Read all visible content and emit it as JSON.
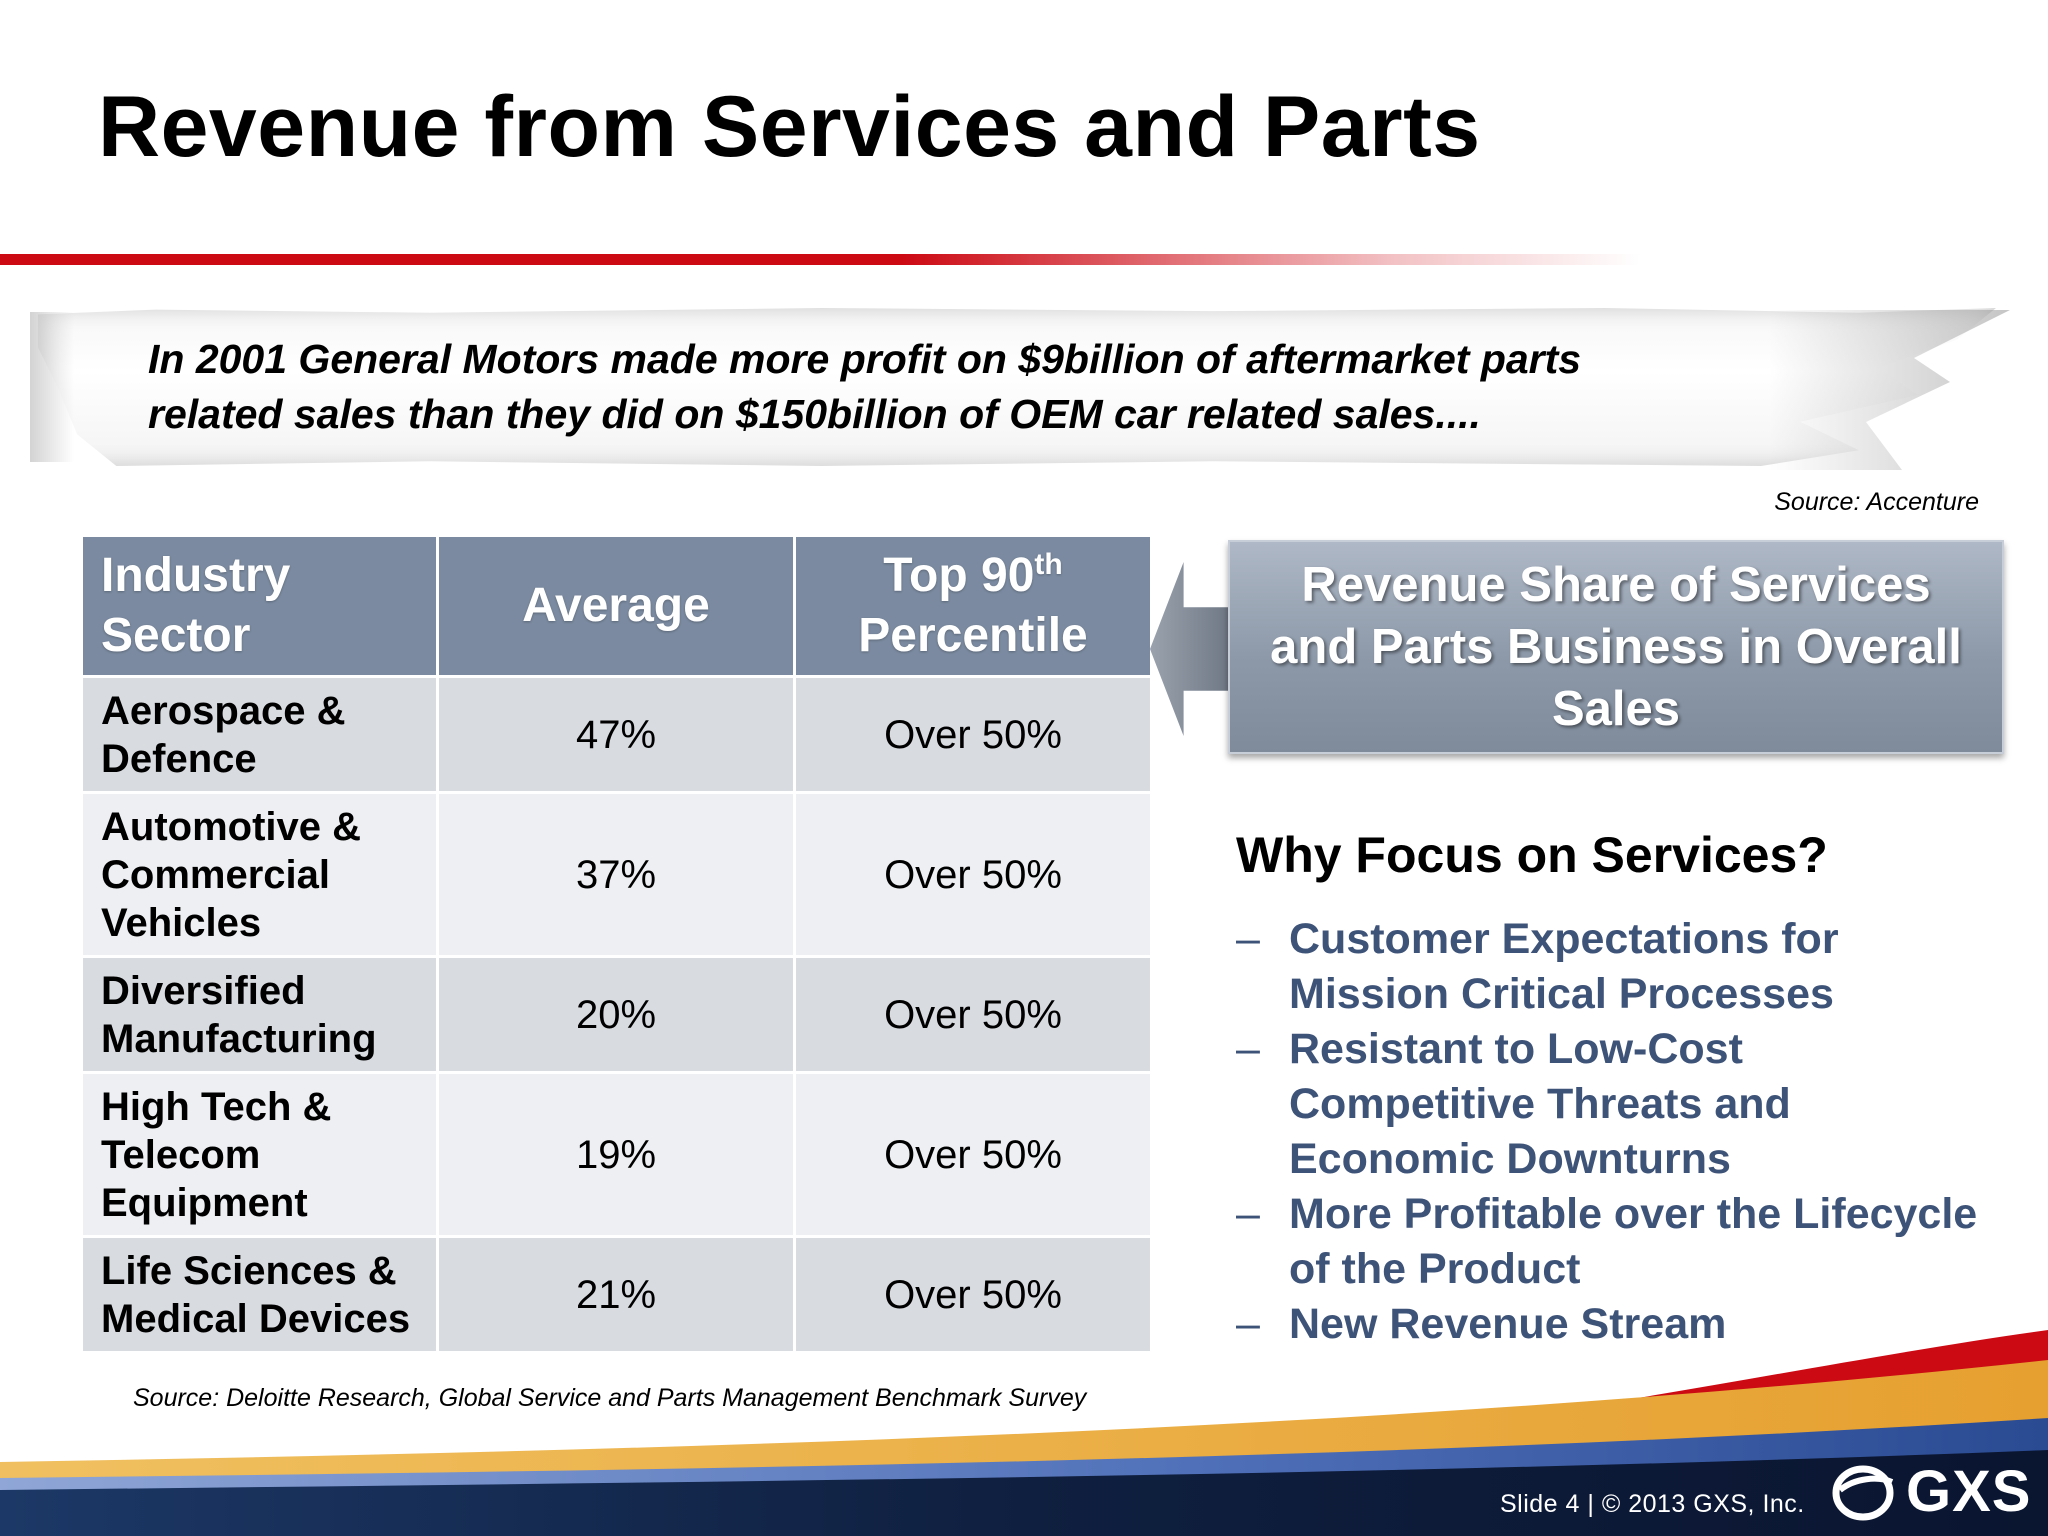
{
  "slide": {
    "title": "Revenue from Services and Parts"
  },
  "quote": {
    "line1": "In 2001 General Motors made more profit on $9billion of aftermarket parts",
    "line2": "related sales than they did on $150billion of OEM car related sales....",
    "source": "Source: Accenture"
  },
  "table": {
    "headers": {
      "sector_line1": "Industry",
      "sector_line2": "Sector",
      "average": "Average",
      "top_prefix": "Top 90",
      "top_sup": "th",
      "top_line2": "Percentile"
    },
    "rows": [
      {
        "sector_lines": [
          "Aerospace &",
          "Defence"
        ],
        "average": "47%",
        "top90": "Over 50%"
      },
      {
        "sector_lines": [
          "Automotive &",
          "Commercial",
          "Vehicles"
        ],
        "average": "37%",
        "top90": "Over 50%"
      },
      {
        "sector_lines": [
          "Diversified",
          "Manufacturing"
        ],
        "average": "20%",
        "top90": "Over 50%"
      },
      {
        "sector_lines": [
          "High Tech &",
          "Telecom",
          "Equipment"
        ],
        "average": "19%",
        "top90": "Over 50%"
      },
      {
        "sector_lines": [
          "Life Sciences &",
          "Medical Devices"
        ],
        "average": "21%",
        "top90": "Over 50%"
      }
    ],
    "source": "Source: Deloitte Research, Global Service and Parts Management Benchmark Survey"
  },
  "callout": {
    "line1": "Revenue Share of Services",
    "line2": "and Parts Business in Overall",
    "line3": "Sales"
  },
  "why": {
    "heading": "Why Focus on Services?",
    "dash": "–",
    "items": [
      {
        "line1": "Customer Expectations for",
        "line2": "Mission Critical Processes"
      },
      {
        "line1": "Resistant to Low-Cost",
        "line2": "Competitive Threats and",
        "line3": "Economic Downturns"
      },
      {
        "line1": "More Profitable over the Lifecycle",
        "line2": "of the Product"
      },
      {
        "line1": "New Revenue Stream"
      }
    ]
  },
  "footer": {
    "text": "Slide 4  |  © 2013 GXS, Inc.",
    "logo_text": "GXS",
    "colors": {
      "red": "#cc0a14",
      "gold": "#e8a83a",
      "navy": "#0f1f3f",
      "table_header": "#7b8aa0",
      "bullet_blue": "#3e5378"
    }
  }
}
